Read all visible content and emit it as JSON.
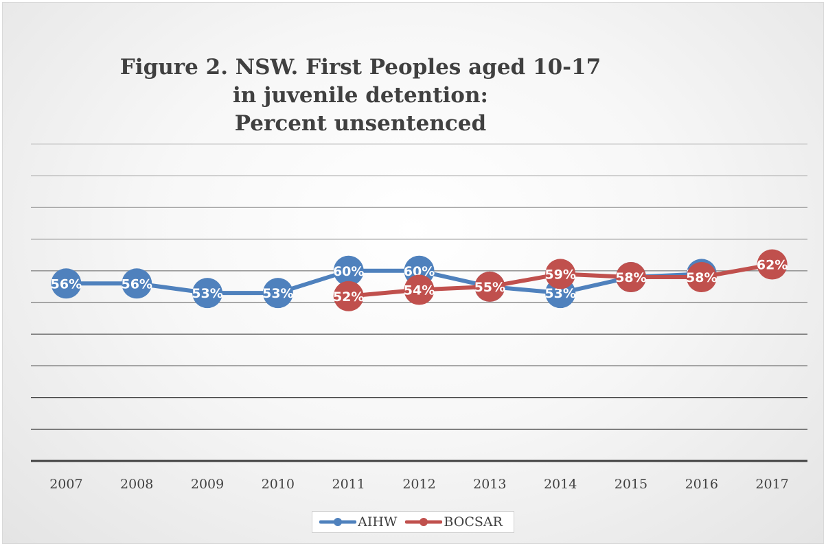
{
  "chart_data": {
    "type": "line",
    "title_lines": [
      "Figure 2. NSW. First Peoples aged 10-17",
      "in juvenile detention:",
      "Percent unsentenced"
    ],
    "categories": [
      "2007",
      "2008",
      "2009",
      "2010",
      "2011",
      "2012",
      "2013",
      "2014",
      "2015",
      "2016",
      "2017"
    ],
    "series": [
      {
        "name": "AIHW",
        "color": "#4f81bd",
        "values": [
          56,
          56,
          53,
          53,
          60,
          60,
          55,
          53,
          58,
          59,
          null
        ],
        "labels": [
          "56%",
          "56%",
          "53%",
          "53%",
          "60%",
          "60%",
          "55%",
          "53%",
          "58%",
          "59%",
          ""
        ]
      },
      {
        "name": "BOCSAR",
        "color": "#c0504d",
        "values": [
          null,
          null,
          null,
          null,
          52,
          54,
          55,
          59,
          58,
          58,
          62
        ],
        "labels": [
          "",
          "",
          "",
          "",
          "52%",
          "54%",
          "55%",
          "59%",
          "58%",
          "58%",
          "62%"
        ]
      }
    ],
    "ylim": [
      0,
      100
    ],
    "grid": true,
    "legend_position": "bottom"
  }
}
